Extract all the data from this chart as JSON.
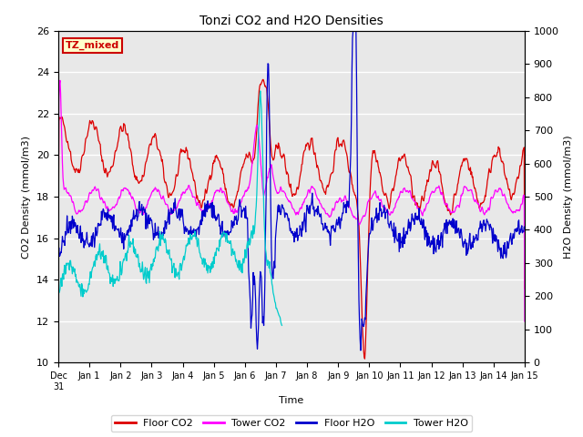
{
  "title": "Tonzi CO2 and H2O Densities",
  "xlabel": "Time",
  "ylabel_left": "CO2 Density (mmol/m3)",
  "ylabel_right": "H2O Density (mmol/m3)",
  "ylim_left": [
    10,
    26
  ],
  "ylim_right": [
    0,
    1000
  ],
  "yticks_left": [
    10,
    12,
    14,
    16,
    18,
    20,
    22,
    24,
    26
  ],
  "yticks_right": [
    0,
    100,
    200,
    300,
    400,
    500,
    600,
    700,
    800,
    900,
    1000
  ],
  "xtick_labels": [
    "Dec\n31",
    "Jan 1",
    "Jan 2",
    "Jan 3",
    "Jan 4",
    "Jan 5",
    "Jan 6",
    "Jan 7",
    "Jan 8",
    "Jan 9",
    "Jan 10",
    "Jan 11",
    "Jan 12",
    "Jan 13",
    "Jan 14",
    "Jan 15"
  ],
  "annotation_text": "TZ_mixed",
  "annotation_color": "#cc0000",
  "annotation_bg": "#ffffcc",
  "annotation_border": "#cc0000",
  "colors": {
    "floor_co2": "#dd0000",
    "tower_co2": "#ff00ff",
    "floor_h2o": "#0000cc",
    "tower_h2o": "#00cccc"
  },
  "legend_labels": [
    "Floor CO2",
    "Tower CO2",
    "Floor H2O",
    "Tower H2O"
  ],
  "bg_color": "#e8e8e8",
  "grid_color": "white",
  "n_points": 800,
  "seed": 42
}
